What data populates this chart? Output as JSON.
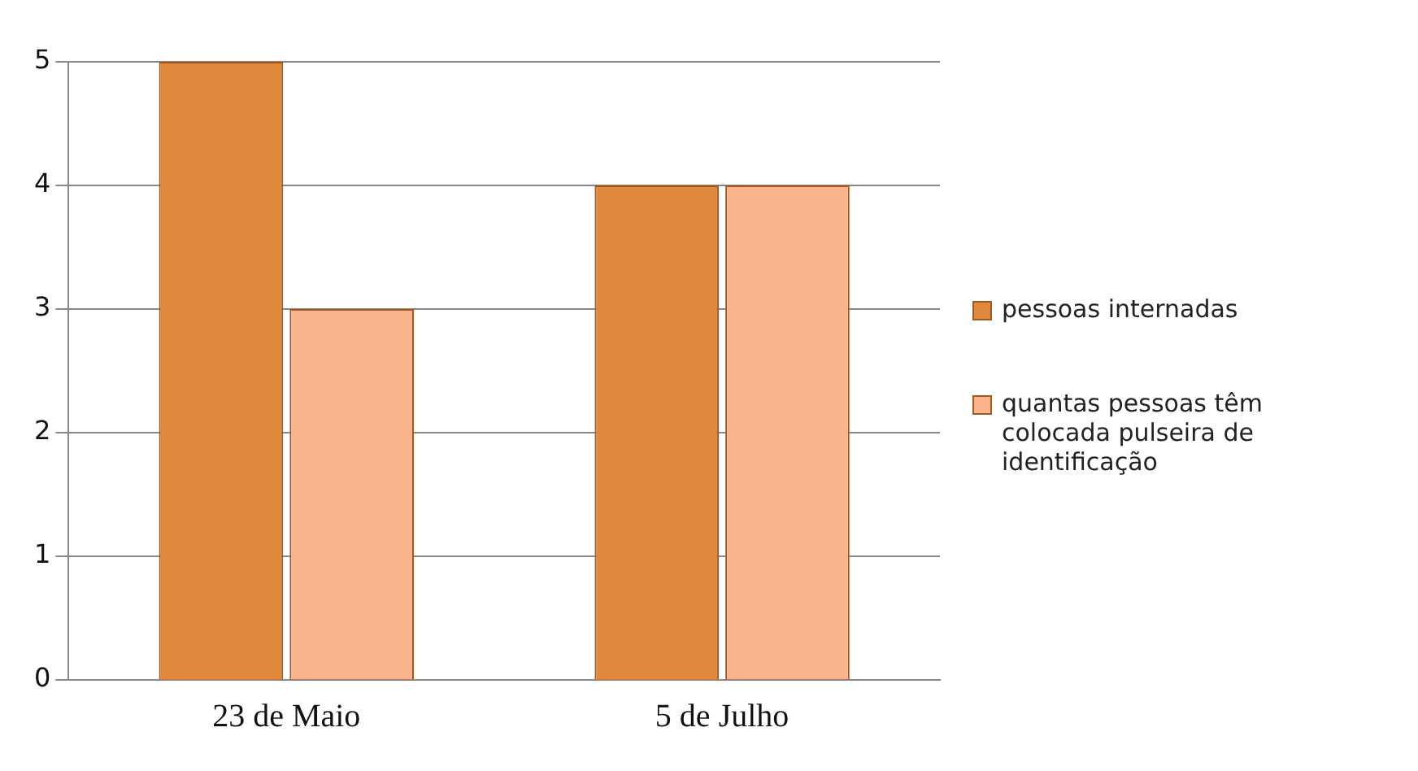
{
  "chart_data": {
    "type": "bar",
    "categories": [
      "23 de Maio",
      "5 de Julho"
    ],
    "series": [
      {
        "name": "pessoas internadas",
        "color": "#e0883e",
        "values": [
          5,
          4
        ]
      },
      {
        "name": "quantas pessoas têm colocada pulseira de identificação",
        "color": "#f9b48e",
        "values": [
          3,
          4
        ]
      }
    ],
    "ylim": [
      0,
      5
    ],
    "yticks": [
      0,
      1,
      2,
      3,
      4,
      5
    ],
    "grid": "y",
    "legend": "right"
  }
}
